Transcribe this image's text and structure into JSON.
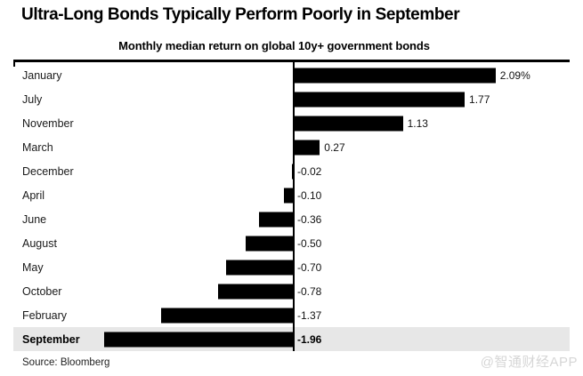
{
  "header": {
    "title": "Ultra-Long Bonds Typically Perform Poorly in September",
    "subtitle": "Monthly median return on global 10y+ government bonds"
  },
  "footer": {
    "source": "Source: Bloomberg",
    "watermark": "@智通财经APP"
  },
  "colors": {
    "bar": "#000000",
    "highlight_row": "#e7e7e7",
    "rule": "#000000",
    "watermark": "#d6d6d6",
    "background": "#ffffff"
  },
  "chart_data": {
    "type": "bar",
    "orientation": "horizontal",
    "title": "Ultra-Long Bonds Typically Perform Poorly in September",
    "subtitle": "Monthly median return on global 10y+ government bonds",
    "categories": [
      "January",
      "July",
      "November",
      "March",
      "December",
      "April",
      "June",
      "August",
      "May",
      "October",
      "February",
      "September"
    ],
    "values": [
      2.09,
      1.77,
      1.13,
      0.27,
      -0.02,
      -0.1,
      -0.36,
      -0.5,
      -0.7,
      -0.78,
      -1.37,
      -1.96
    ],
    "value_labels": [
      "2.09%",
      "1.77",
      "1.13",
      "0.27",
      "-0.02",
      "-0.10",
      "-0.36",
      "-0.50",
      "-0.70",
      "-0.78",
      "-1.37",
      "-1.96"
    ],
    "unit": "%",
    "baseline": 0,
    "xlim": [
      -2.2,
      2.3
    ],
    "grid": false,
    "legend": false,
    "highlighted_category": "September",
    "sorted": "descending by value",
    "source": "Source: Bloomberg"
  }
}
